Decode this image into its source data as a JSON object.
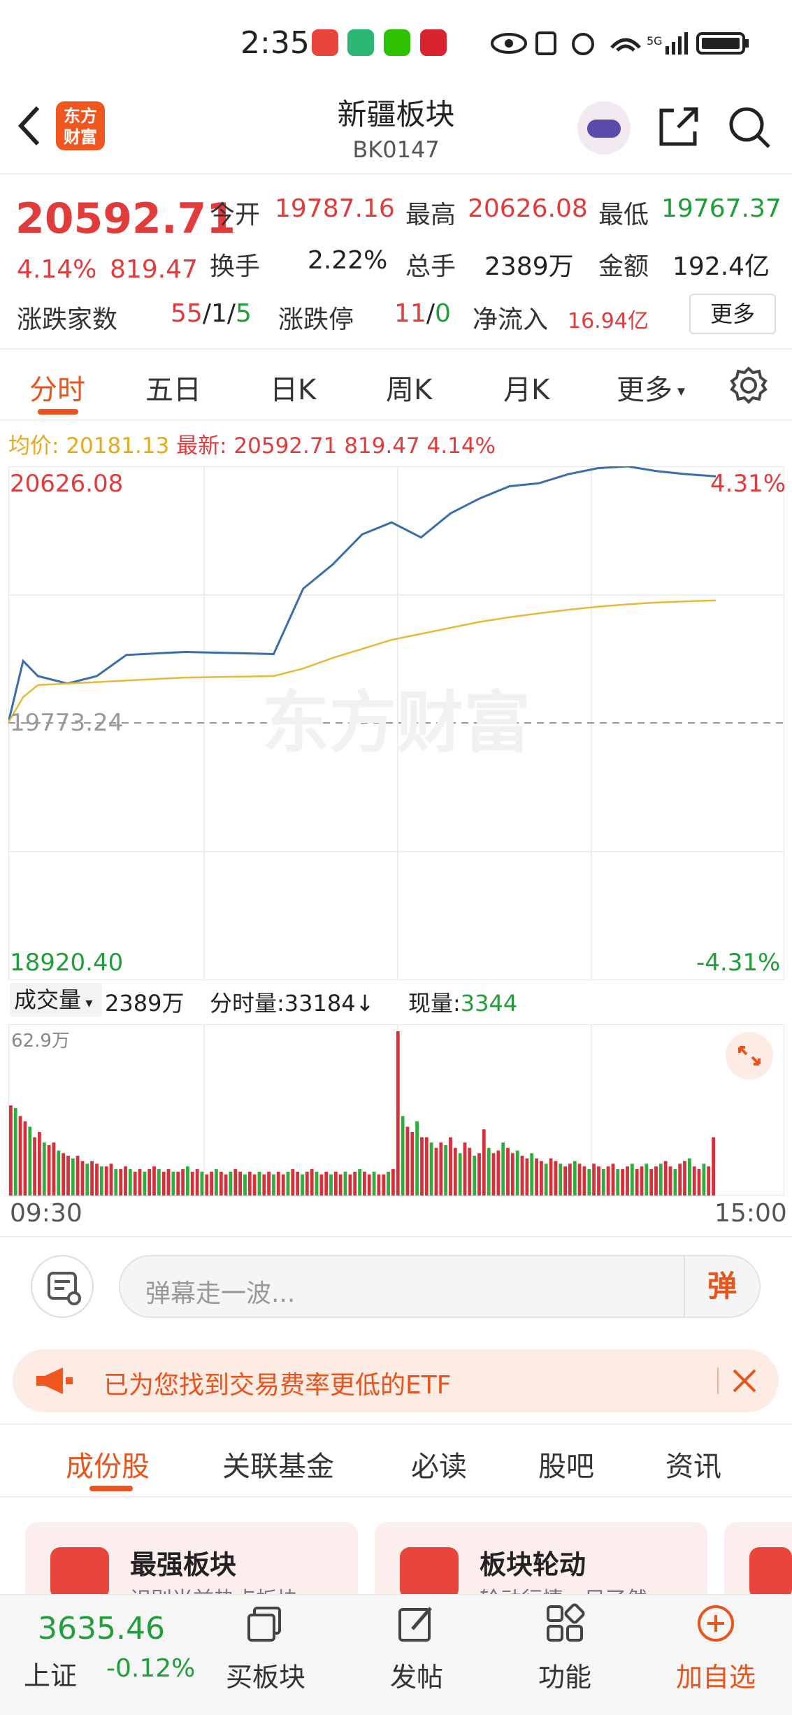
{
  "status_bar": {
    "time": "2:35"
  },
  "header": {
    "logo_text": "东方财富",
    "title": "新疆板块",
    "code": "BK0147"
  },
  "quote": {
    "price": "20592.71",
    "change_pct": "4.14%",
    "change": "819.47",
    "open_label": "今开",
    "open": "19787.16",
    "high_label": "最高",
    "high": "20626.08",
    "low_label": "最低",
    "low": "19767.37",
    "turnover_label": "换手",
    "turnover": "2.22%",
    "volume_label": "总手",
    "volume": "2389万",
    "amount_label": "金额",
    "amount": "192.4亿",
    "breadth_label": "涨跌家数",
    "breadth_up": "55",
    "breadth_flat": "1",
    "breadth_down": "5",
    "limit_label": "涨跌停",
    "limit_up": "11",
    "limit_down": "0",
    "inflow_label": "净流入",
    "inflow": "16.94亿",
    "more_label": "更多"
  },
  "chart_tabs": [
    "分时",
    "五日",
    "日K",
    "周K",
    "月K",
    "更多"
  ],
  "chart_info": {
    "avg_label": "均价:",
    "avg": "20181.13",
    "latest_label": "最新:",
    "latest": "20592.71",
    "chg": "819.47",
    "chg_pct": "4.14%"
  },
  "chart_axis": {
    "top": "20626.08",
    "mid": "19773.24",
    "bottom": "18920.40",
    "top_pct": "4.31%",
    "bottom_pct": "-4.31%",
    "watermark": "东方财富"
  },
  "volume_info": {
    "selector": "成交量",
    "total": "2389万",
    "minute_label": "分时量:",
    "minute": "33184↓",
    "current_label": "现量:",
    "current": "3344",
    "max": "62.9万"
  },
  "time_axis": {
    "start": "09:30",
    "end": "15:00"
  },
  "chart_data": {
    "type": "line",
    "ylim": [
      18920.4,
      20626.08
    ],
    "prev_close": 19773.24,
    "x": [
      0,
      5,
      10,
      20,
      30,
      40,
      60,
      90,
      100,
      110,
      120,
      130,
      140,
      150,
      160,
      170,
      180,
      190,
      200,
      210,
      220,
      230,
      240
    ],
    "series": [
      {
        "values": [
          19776,
          19980,
          19930,
          19905,
          19930,
          20000,
          20010,
          20003,
          20220,
          20300,
          20400,
          20440,
          20390,
          20470,
          20520,
          20560,
          20570,
          20600,
          20620,
          20626,
          20610,
          20600,
          20593
        ]
      },
      {
        "values": [
          19776,
          19860,
          19900,
          19905,
          19910,
          19915,
          19925,
          19930,
          19955,
          19990,
          20020,
          20050,
          20070,
          20090,
          20110,
          20125,
          20138,
          20150,
          20160,
          20168,
          20174,
          20178,
          20181
        ]
      }
    ]
  },
  "volume_data": [
    34,
    33,
    30,
    28,
    26,
    22,
    24,
    20,
    19,
    20,
    17,
    16,
    15,
    14,
    15,
    13,
    12,
    13,
    12,
    11,
    11,
    12,
    10,
    10,
    11,
    10,
    9,
    10,
    9,
    10,
    11,
    10,
    9,
    10,
    9,
    9,
    10,
    11,
    9,
    10,
    9,
    8,
    9,
    10,
    9,
    8,
    9,
    10,
    9,
    8,
    9,
    8,
    9,
    8,
    9,
    8,
    9,
    8,
    9,
    10,
    9,
    8,
    9,
    10,
    9,
    8,
    9,
    8,
    9,
    8,
    9,
    8,
    9,
    10,
    9,
    8,
    9,
    8,
    8,
    9,
    10,
    62,
    30,
    26,
    24,
    28,
    22,
    22,
    20,
    18,
    20,
    19,
    22,
    18,
    16,
    20,
    18,
    15,
    16,
    25,
    18,
    16,
    17,
    20,
    18,
    16,
    17,
    15,
    14,
    16,
    14,
    13,
    12,
    14,
    13,
    12,
    11,
    12,
    13,
    12,
    11,
    10,
    12,
    11,
    10,
    11,
    12,
    10,
    10,
    11,
    12,
    10,
    11,
    12,
    10,
    11,
    12,
    13,
    11,
    10,
    12,
    13,
    14,
    11,
    10,
    12,
    11,
    22
  ],
  "barrage": {
    "placeholder": "弹幕走一波...",
    "button": "弹"
  },
  "etf_banner": {
    "text": "已为您找到交易费率更低的ETF"
  },
  "bottom_tabs": [
    "成份股",
    "关联基金",
    "必读",
    "股吧",
    "资讯"
  ],
  "cards": [
    {
      "title": "最强板块",
      "subtitle": "识别当前热点板块"
    },
    {
      "title": "板块轮动",
      "subtitle": "轮动行情一目了然"
    }
  ],
  "bottom_nav": {
    "index_value": "3635.46",
    "index_name": "上证",
    "index_change": "-0.12%",
    "buy_label": "买板块",
    "post_label": "发帖",
    "func_label": "功能",
    "add_label": "加自选"
  }
}
